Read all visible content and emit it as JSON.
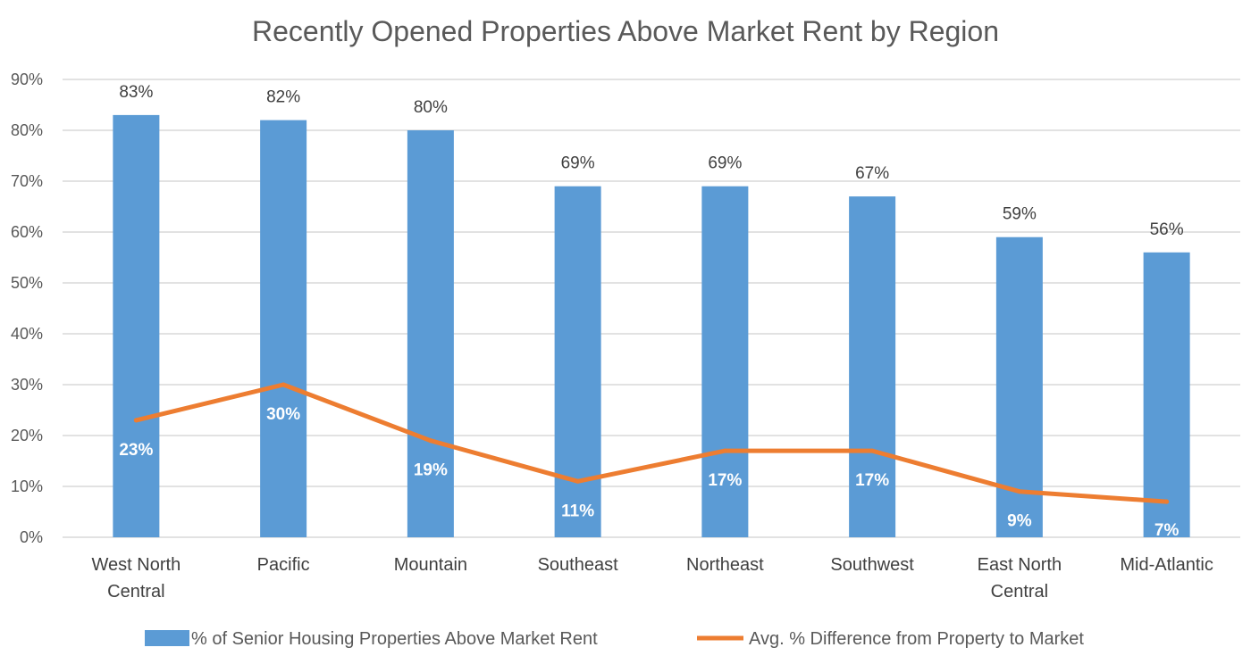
{
  "chart_data": {
    "type": "bar",
    "title": "Recently Opened Properties Above Market Rent by Region",
    "categories": [
      [
        "West North",
        "Central"
      ],
      [
        "Pacific"
      ],
      [
        "Mountain"
      ],
      [
        "Southeast"
      ],
      [
        "Northeast"
      ],
      [
        "Southwest"
      ],
      [
        "East North",
        "Central"
      ],
      [
        "Mid-Atlantic"
      ]
    ],
    "y_ticks": [
      "0%",
      "10%",
      "20%",
      "30%",
      "40%",
      "50%",
      "60%",
      "70%",
      "80%",
      "90%"
    ],
    "ylim": [
      0,
      90
    ],
    "grid": true,
    "legend_position": "bottom",
    "series": [
      {
        "name": "% of Senior Housing Properties Above Market Rent",
        "type": "bar",
        "color": "#5b9bd5",
        "values": [
          83,
          82,
          80,
          69,
          69,
          67,
          59,
          56
        ],
        "labels": [
          "83%",
          "82%",
          "80%",
          "69%",
          "69%",
          "67%",
          "59%",
          "56%"
        ]
      },
      {
        "name": "Avg. % Difference from Property to Market",
        "type": "line",
        "color": "#ed7d31",
        "values": [
          23,
          30,
          19,
          11,
          17,
          17,
          9,
          7
        ],
        "labels": [
          "23%",
          "30%",
          "19%",
          "11%",
          "17%",
          "17%",
          "9%",
          "7%"
        ]
      }
    ]
  }
}
